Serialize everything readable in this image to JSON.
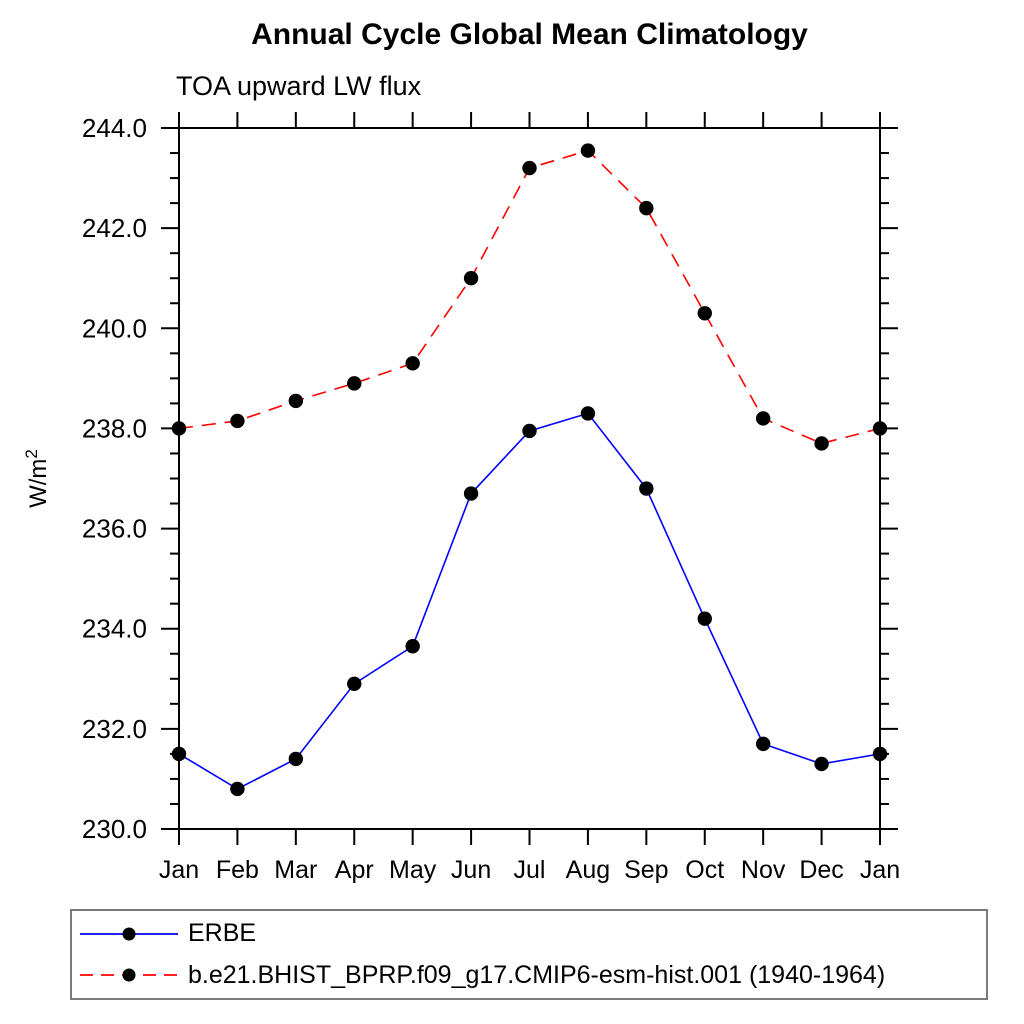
{
  "chart_data": {
    "type": "line",
    "title": "Annual Cycle Global Mean Climatology",
    "subtitle": "TOA upward LW flux",
    "ylabel": "W/m²",
    "xlabel": "",
    "categories": [
      "Jan",
      "Feb",
      "Mar",
      "Apr",
      "May",
      "Jun",
      "Jul",
      "Aug",
      "Sep",
      "Oct",
      "Nov",
      "Dec",
      "Jan"
    ],
    "series": [
      {
        "name": "ERBE",
        "color": "#0000ff",
        "line_style": "solid",
        "marker": "circle-icon",
        "marker_color": "#000000",
        "values": [
          231.5,
          230.8,
          231.4,
          232.9,
          233.65,
          236.7,
          237.95,
          238.3,
          236.8,
          234.2,
          231.7,
          231.3,
          231.5
        ]
      },
      {
        "name": "b.e21.BHIST_BPRP.f09_g17.CMIP6-esm-hist.001 (1940-1964)",
        "color": "#ff0000",
        "line_style": "dashed",
        "marker": "circle-icon",
        "marker_color": "#000000",
        "values": [
          238.0,
          238.15,
          238.55,
          238.9,
          239.3,
          241.0,
          243.2,
          243.55,
          242.4,
          240.3,
          238.2,
          237.7,
          238.0
        ]
      }
    ],
    "ylim": [
      230.0,
      244.0
    ],
    "yticks": {
      "values": [
        230,
        232,
        234,
        236,
        238,
        240,
        242,
        244
      ],
      "labels": [
        "230.0",
        "232.0",
        "234.0",
        "236.0",
        "238.0",
        "240.0",
        "242.0",
        "244.0"
      ],
      "major_step": 2.0,
      "minor_step": 0.5
    },
    "grid": false,
    "legend_position": "bottom-left"
  }
}
